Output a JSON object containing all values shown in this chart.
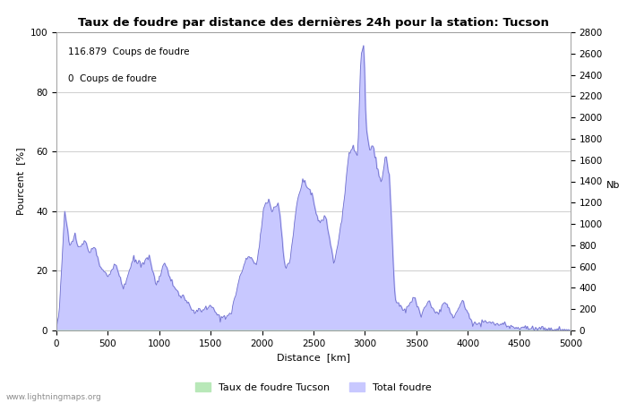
{
  "title": "Taux de foudre par distance des dernières 24h pour la station: Tucson",
  "xlabel": "Distance  [km]",
  "ylabel_left": "Pourcent  [%]",
  "ylabel_right": "Nb",
  "annotation_line1": "116.879  Coups de foudre",
  "annotation_line2": "0  Coups de foudre",
  "legend_label1": "Taux de foudre Tucson",
  "legend_label2": "Total foudre",
  "watermark": "www.lightningmaps.org",
  "xlim": [
    0,
    5000
  ],
  "ylim_left": [
    0,
    100
  ],
  "ylim_right": [
    0,
    2800
  ],
  "xticks": [
    0,
    500,
    1000,
    1500,
    2000,
    2500,
    3000,
    3500,
    4000,
    4500,
    5000
  ],
  "yticks_left": [
    0,
    20,
    40,
    60,
    80,
    100
  ],
  "yticks_right": [
    0,
    200,
    400,
    600,
    800,
    1000,
    1200,
    1400,
    1600,
    1800,
    2000,
    2200,
    2400,
    2600,
    2800
  ],
  "fill_color_total": "#c8c8ff",
  "fill_color_tucson": "#b8e8b8",
  "line_color": "#7070cc",
  "grid_color": "#bbbbbb",
  "bg_color": "#ffffff",
  "title_fontsize": 9.5,
  "label_fontsize": 8,
  "tick_fontsize": 7.5,
  "annot_fontsize": 7.5,
  "legend_fontsize": 8
}
